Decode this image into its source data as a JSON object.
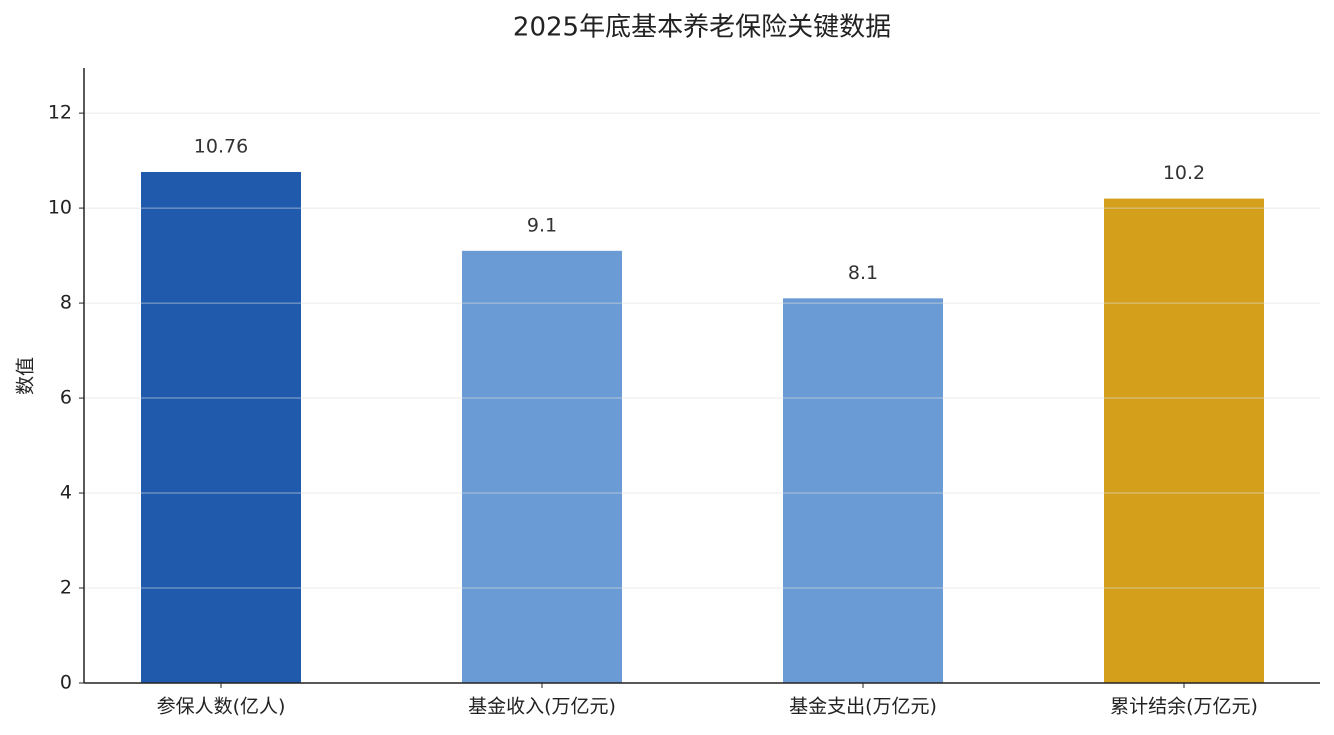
{
  "chart_data": {
    "type": "bar",
    "title": "2025年底基本养老保险关键数据",
    "ylabel": "数值",
    "categories": [
      "参保人数(亿人)",
      "基金收入(万亿元)",
      "基金支出(万亿元)",
      "累计结余(万亿元)"
    ],
    "values": [
      10.76,
      9.1,
      8.1,
      10.2
    ],
    "colors": [
      "#1f5aad",
      "#6b9bd4",
      "#6b9bd4",
      "#d4a01c"
    ],
    "ylim": [
      0,
      12.95
    ],
    "yticks": [
      0,
      2,
      4,
      6,
      8,
      10,
      12
    ],
    "grid": true
  }
}
